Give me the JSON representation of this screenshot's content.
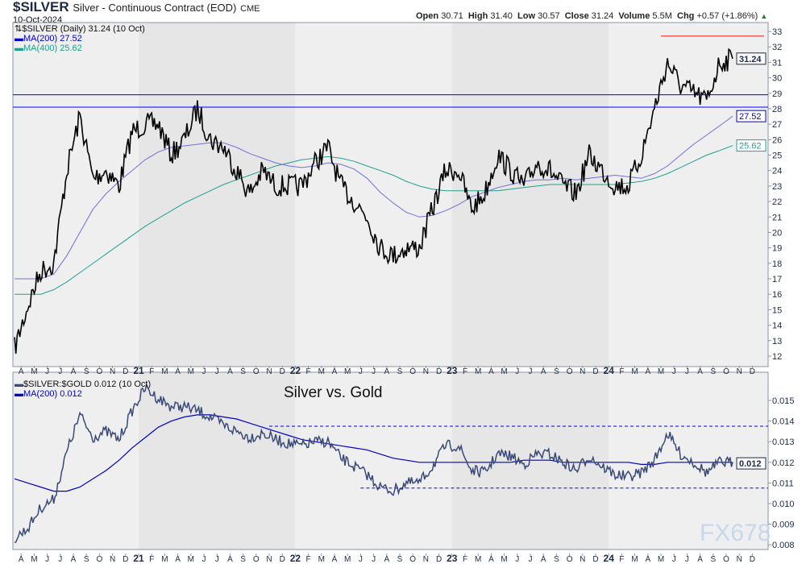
{
  "header": {
    "symbol": "$SILVER",
    "name": "Silver - Continuous Contract (EOD)",
    "exchange": "CME",
    "date": "10-Oct-2024",
    "open_label": "Open",
    "open": "30.71",
    "high_label": "High",
    "high": "31.40",
    "low_label": "Low",
    "low": "30.57",
    "close_label": "Close",
    "close": "31.24",
    "volume_label": "Volume",
    "volume": "5.5M",
    "chg_label": "Chg",
    "chg": "+0.57 (+1.86%)"
  },
  "colors": {
    "price": "#000000",
    "ma200": "#0000cc",
    "ma400": "#20a090",
    "ratio": "#3a4a78",
    "hline": "#0000ff",
    "resistance": "#e02020",
    "band": "#e6e6e6",
    "bg": "#efefef"
  },
  "chart_data": [
    {
      "type": "line",
      "title": "$SILVER (Daily) 31.24 (10 Oct)",
      "legend": [
        "MA(200) 27.52",
        "MA(400) 25.62"
      ],
      "last_labels": {
        "price": "31.24",
        "ma200": "27.52",
        "ma400": "25.62"
      },
      "x_start": "2020-03",
      "x_end": "2024-10",
      "ylim": [
        11.5,
        33.5
      ],
      "yticks": [
        "33",
        "32",
        "31",
        "30",
        "29",
        "28",
        "27",
        "26",
        "25",
        "24",
        "23",
        "22",
        "21",
        "20",
        "19",
        "18",
        "17",
        "16",
        "15",
        "14",
        "13",
        "12"
      ],
      "xticks": [
        "A",
        "M",
        "J",
        "J",
        "A",
        "S",
        "O",
        "N",
        "D",
        "21",
        "F",
        "M",
        "A",
        "M",
        "J",
        "J",
        "A",
        "S",
        "O",
        "N",
        "D",
        "22",
        "F",
        "M",
        "A",
        "M",
        "J",
        "J",
        "A",
        "S",
        "O",
        "N",
        "D",
        "23",
        "F",
        "M",
        "A",
        "M",
        "J",
        "J",
        "A",
        "S",
        "O",
        "N",
        "D",
        "24",
        "F",
        "M",
        "A",
        "M",
        "J",
        "J",
        "A",
        "S",
        "O",
        "N",
        "D"
      ],
      "series": [
        {
          "name": "$SILVER",
          "values": [
            12.5,
            15.2,
            17.5,
            18,
            24,
            27.5,
            23.5,
            24,
            23,
            26.5,
            27,
            27,
            25,
            26,
            28,
            26,
            25.5,
            24,
            22.5,
            24,
            23,
            23,
            23,
            24.5,
            25.5,
            23,
            22,
            21,
            19,
            18.5,
            19,
            19,
            21.5,
            24,
            24,
            21.5,
            22.5,
            25,
            24,
            23,
            24.5,
            24,
            23,
            22.5,
            25,
            24,
            23,
            23,
            25,
            28,
            31,
            29.5,
            29,
            28.5,
            31,
            31.24
          ]
        },
        {
          "name": "MA(200)",
          "values": [
            17,
            17,
            17,
            17.3,
            18.5,
            20,
            21.5,
            22.5,
            23.3,
            24,
            24.7,
            25.2,
            25.5,
            25.6,
            25.7,
            25.8,
            25.8,
            25.5,
            25.1,
            24.8,
            24.5,
            24.3,
            24.2,
            24.3,
            24.5,
            24.4,
            24.1,
            23.5,
            22.6,
            21.9,
            21.3,
            21,
            21.1,
            21.4,
            21.8,
            22.3,
            22.6,
            22.9,
            23.1,
            23.3,
            23.4,
            23.4,
            23.5,
            23.4,
            23.5,
            23.6,
            23.7,
            23.6,
            23.5,
            23.8,
            24.3,
            25,
            25.7,
            26.3,
            26.9,
            27.52
          ]
        },
        {
          "name": "MA(400)",
          "values": [
            16,
            16,
            16,
            16.3,
            16.8,
            17.4,
            18,
            18.6,
            19.2,
            19.8,
            20.4,
            20.9,
            21.4,
            21.9,
            22.3,
            22.7,
            23.1,
            23.4,
            23.7,
            24,
            24.3,
            24.5,
            24.7,
            24.8,
            24.9,
            24.8,
            24.6,
            24.3,
            24,
            23.7,
            23.3,
            23,
            22.8,
            22.7,
            22.7,
            22.7,
            22.7,
            22.7,
            22.8,
            22.9,
            23,
            23.1,
            23.1,
            23.1,
            23.1,
            23.1,
            23.1,
            23.2,
            23.3,
            23.5,
            23.8,
            24.2,
            24.6,
            25,
            25.3,
            25.62
          ]
        }
      ],
      "hlines": [
        28.9,
        28.1
      ],
      "resistance": {
        "value": 32.7,
        "from": "2024-05"
      }
    },
    {
      "type": "line",
      "title": "$SILVER:$GOLD 0.012 (10 Oct)",
      "annotation": "Silver vs. Gold",
      "legend": [
        "MA(200) 0.012"
      ],
      "last_label": "0.012",
      "ylim": [
        0.0078,
        0.0162
      ],
      "yticks": [
        "0.015",
        "0.014",
        "0.013",
        "0.012",
        "0.011",
        "0.010",
        "0.009",
        "0.008"
      ],
      "series": [
        {
          "name": "$SILVER:$GOLD",
          "values": [
            0.0083,
            0.0088,
            0.0098,
            0.0102,
            0.0125,
            0.0143,
            0.0132,
            0.0135,
            0.0131,
            0.0145,
            0.0156,
            0.0151,
            0.0147,
            0.0147,
            0.0145,
            0.0142,
            0.0138,
            0.0135,
            0.0132,
            0.0134,
            0.0131,
            0.0129,
            0.0128,
            0.013,
            0.013,
            0.0122,
            0.0118,
            0.0114,
            0.0108,
            0.0106,
            0.011,
            0.011,
            0.0118,
            0.0128,
            0.0128,
            0.0116,
            0.0115,
            0.0124,
            0.0123,
            0.0119,
            0.0124,
            0.0124,
            0.012,
            0.0116,
            0.0123,
            0.0118,
            0.0114,
            0.0113,
            0.0115,
            0.0121,
            0.0134,
            0.0124,
            0.012,
            0.0115,
            0.012,
            0.012
          ]
        },
        {
          "name": "MA(200)",
          "values": [
            0.0112,
            0.011,
            0.0108,
            0.0106,
            0.0106,
            0.0108,
            0.0112,
            0.0116,
            0.0121,
            0.0127,
            0.0132,
            0.0137,
            0.014,
            0.0142,
            0.0143,
            0.0143,
            0.0142,
            0.0141,
            0.0139,
            0.0137,
            0.0135,
            0.0133,
            0.0131,
            0.013,
            0.0129,
            0.0128,
            0.0127,
            0.0126,
            0.0124,
            0.0122,
            0.0121,
            0.012,
            0.012,
            0.012,
            0.012,
            0.012,
            0.012,
            0.012,
            0.012,
            0.0121,
            0.0121,
            0.0121,
            0.012,
            0.012,
            0.012,
            0.012,
            0.012,
            0.012,
            0.0119,
            0.0119,
            0.012,
            0.012,
            0.012,
            0.012,
            0.012,
            0.012
          ]
        }
      ],
      "hlines": [
        {
          "value": 0.01375,
          "from": "2021-11"
        },
        {
          "value": 0.01075,
          "from": "2022-06"
        }
      ]
    }
  ],
  "watermark": "FX678"
}
